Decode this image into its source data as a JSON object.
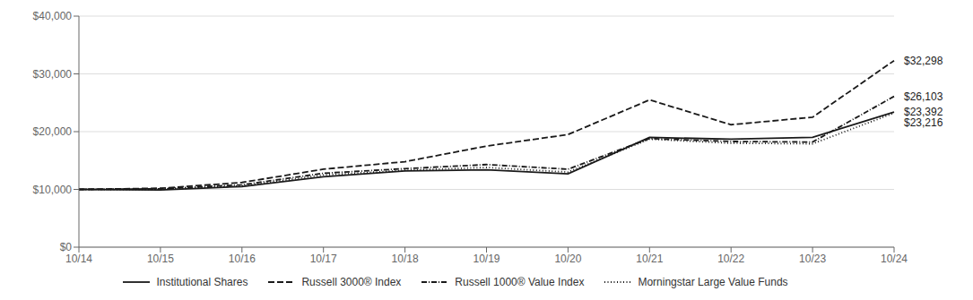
{
  "chart_data": {
    "type": "line",
    "categories": [
      "10/14",
      "10/15",
      "10/16",
      "10/17",
      "10/18",
      "10/19",
      "10/20",
      "10/21",
      "10/22",
      "10/23",
      "10/24"
    ],
    "series": [
      {
        "name": "Institutional Shares",
        "color": "#1a1a1a",
        "line_style": "solid",
        "values": [
          10000,
          9900,
          10500,
          12200,
          13200,
          13400,
          12700,
          19000,
          18700,
          19000,
          23392
        ]
      },
      {
        "name": "Russell 3000® Index",
        "color": "#1a1a1a",
        "line_style": "dashed",
        "values": [
          10000,
          10200,
          11200,
          13500,
          14800,
          17500,
          19500,
          25500,
          21200,
          22500,
          32298
        ]
      },
      {
        "name": "Russell 1000® Value Index",
        "color": "#1a1a1a",
        "line_style": "dashdot",
        "values": [
          10000,
          10100,
          10800,
          12800,
          13600,
          14300,
          13500,
          18800,
          18300,
          18200,
          26103
        ]
      },
      {
        "name": "Morningstar Large Value Funds",
        "color": "#1a1a1a",
        "line_style": "dotted",
        "values": [
          10000,
          10000,
          10600,
          12500,
          13300,
          13800,
          13000,
          18700,
          18000,
          17900,
          23216
        ]
      }
    ],
    "ylim": [
      0,
      40000
    ],
    "yticks": [
      {
        "value": 0,
        "label": "$0"
      },
      {
        "value": 10000,
        "label": "$10,000"
      },
      {
        "value": 20000,
        "label": "$20,000"
      },
      {
        "value": 30000,
        "label": "$30,000"
      },
      {
        "value": 40000,
        "label": "$40,000"
      }
    ],
    "grid": true,
    "legend": "bottom",
    "annotations": [
      {
        "text": "$32,298",
        "x": "10/24",
        "y": 32298
      },
      {
        "text": "$26,103",
        "x": "10/24",
        "y": 26103
      },
      {
        "text": "$23,392",
        "x": "10/24",
        "y": 23392
      },
      {
        "text": "$23,216",
        "x": "10/24",
        "y": 23216
      }
    ]
  }
}
